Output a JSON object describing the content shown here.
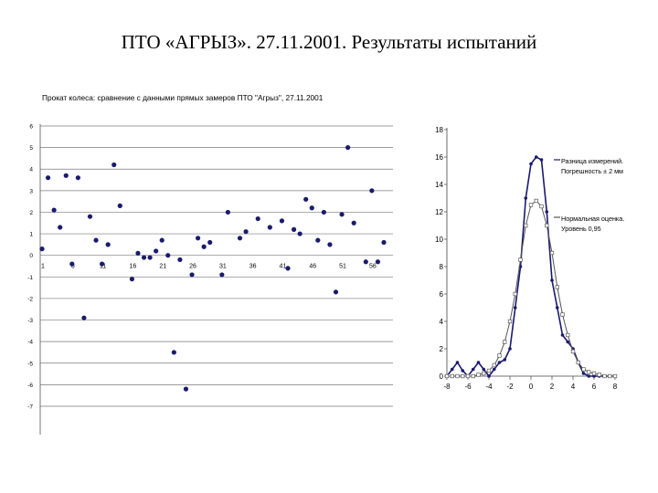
{
  "page": {
    "title": "ПТО «АГРЫЗ». 27.11.2001. Результаты испытаний"
  },
  "chart_data": [
    {
      "type": "scatter",
      "title": "Прокат колеса: сравнение с данными прямых замеров ПТО \"Агрыз\", 27.11.2001",
      "xlabel": "",
      "ylabel": "",
      "xlim": [
        1,
        58
      ],
      "ylim": [
        -7,
        6
      ],
      "y_ticks": [
        6,
        5,
        4,
        3,
        2,
        1,
        0,
        -1,
        -2,
        -3,
        -4,
        -5,
        -6,
        -7
      ],
      "x_ticks": [
        1,
        6,
        11,
        16,
        21,
        26,
        31,
        36,
        41,
        46,
        51,
        56
      ],
      "grid": true,
      "marker_color": "#1a1a6e",
      "series": [
        {
          "x": [
            1,
            2,
            3,
            4,
            5,
            6,
            7,
            8,
            9,
            10,
            11,
            12,
            13,
            14,
            15,
            16,
            17,
            18,
            19,
            20,
            21,
            22,
            23,
            24,
            25,
            26,
            27,
            28,
            29,
            30,
            31,
            32,
            33,
            34,
            35,
            36,
            37,
            38,
            39,
            40,
            41,
            42,
            43,
            44,
            45,
            46,
            47,
            48,
            49,
            50,
            51,
            52,
            53,
            54,
            55,
            56,
            57,
            58
          ],
          "y": [
            0.3,
            3.6,
            2.1,
            1.3,
            3.7,
            -0.4,
            3.6,
            -2.9,
            1.8,
            0.7,
            -0.4,
            0.5,
            4.2,
            2.3,
            null,
            -1.1,
            0.1,
            -0.1,
            -0.1,
            0.2,
            0.7,
            0.0,
            -4.5,
            -0.2,
            -6.2,
            -0.9,
            0.8,
            0.4,
            0.6,
            null,
            -0.9,
            2.0,
            null,
            0.8,
            1.1,
            null,
            1.7,
            null,
            1.3,
            null,
            1.6,
            -0.6,
            1.2,
            1.0,
            2.6,
            2.2,
            0.7,
            2.0,
            0.5,
            -1.7,
            1.9,
            5.0,
            1.5,
            null,
            -0.3,
            3.0,
            -0.3,
            0.6
          ]
        }
      ]
    },
    {
      "type": "line",
      "title": "",
      "xlabel": "",
      "ylabel": "",
      "xlim": [
        -8,
        8
      ],
      "ylim": [
        0,
        18
      ],
      "x_ticks": [
        -8,
        -6,
        -4,
        -2,
        0,
        2,
        4,
        6,
        8
      ],
      "y_ticks": [
        0,
        2,
        4,
        6,
        8,
        10,
        12,
        14,
        16,
        18
      ],
      "grid": false,
      "series": [
        {
          "name": "Разница измерений. Погрешность ± 2 мм",
          "color": "#1a1a6e",
          "marker": "filled-circle",
          "x": [
            -8,
            -7.5,
            -7,
            -6.5,
            -6,
            -5.5,
            -5,
            -4.5,
            -4,
            -3.5,
            -3,
            -2.5,
            -2,
            -1.5,
            -1,
            -0.5,
            0,
            0.5,
            1,
            1.5,
            2,
            2.5,
            3,
            3.5,
            4,
            4.5,
            5,
            5.5,
            6,
            6.5,
            7,
            7.5,
            8
          ],
          "y": [
            0,
            0.5,
            1.0,
            0.4,
            0,
            0.5,
            1.0,
            0.5,
            0,
            0.5,
            1.0,
            1.2,
            2.0,
            5.0,
            8.0,
            13.0,
            15.5,
            16.0,
            15.8,
            12.0,
            7.0,
            5.0,
            3.0,
            2.5,
            2.0,
            1.0,
            0.2,
            0,
            0,
            0,
            0,
            0,
            0
          ]
        },
        {
          "name": "Нормальная оценка. Уровень 0,95",
          "color": "#555555",
          "marker": "open-square",
          "x": [
            -8,
            -7.5,
            -7,
            -6.5,
            -6,
            -5.5,
            -5,
            -4.5,
            -4,
            -3.5,
            -3,
            -2.5,
            -2,
            -1.5,
            -1,
            -0.5,
            0,
            0.5,
            1,
            1.5,
            2,
            2.5,
            3,
            3.5,
            4,
            4.5,
            5,
            5.5,
            6,
            6.5,
            7,
            7.5,
            8
          ],
          "y": [
            0,
            0,
            0,
            0,
            0,
            0,
            0.1,
            0.2,
            0.4,
            0.8,
            1.5,
            2.5,
            4.0,
            6.0,
            8.5,
            11.0,
            12.5,
            12.8,
            12.4,
            11.0,
            9.0,
            6.5,
            4.5,
            3.0,
            1.8,
            1.0,
            0.5,
            0.3,
            0.2,
            0.1,
            0,
            0,
            0
          ]
        }
      ]
    }
  ]
}
